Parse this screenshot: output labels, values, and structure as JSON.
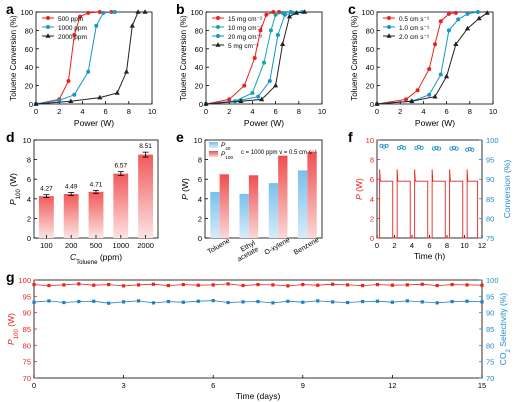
{
  "panels": {
    "a": {
      "letter": "a"
    },
    "b": {
      "letter": "b"
    },
    "c": {
      "letter": "c"
    },
    "d": {
      "letter": "d"
    },
    "e": {
      "letter": "e"
    },
    "f": {
      "letter": "f"
    },
    "g": {
      "letter": "g"
    }
  },
  "colors": {
    "red": "#e8231f",
    "blue": "#1597c9",
    "teal": "#17a6a6",
    "black": "#222222",
    "pink_light": "#fbd3d4",
    "blue_light": "#a9d6f2",
    "axis_right_blue": "#1f8ccd"
  },
  "chart_data": [
    {
      "id": "a",
      "type": "line",
      "xlabel": "Power (W)",
      "ylabel": "Toluene Conversion (%)",
      "xlim": [
        0,
        10
      ],
      "ylim": [
        0,
        100
      ],
      "xticks": [
        "0",
        "2",
        "4",
        "6",
        "8",
        "10"
      ],
      "yticks": [
        "0",
        "20",
        "40",
        "60",
        "80",
        "100"
      ],
      "legend_position": "top-left",
      "series": [
        {
          "name": "500 ppm",
          "color": "#e8231f",
          "marker": "circle",
          "points": [
            [
              0,
              0
            ],
            [
              2.0,
              5
            ],
            [
              2.8,
              25
            ],
            [
              3.3,
              75
            ],
            [
              3.8,
              95
            ],
            [
              4.5,
              99
            ],
            [
              5.5,
              100
            ],
            [
              6.5,
              100
            ]
          ]
        },
        {
          "name": "1000 ppm",
          "color": "#1597c9",
          "marker": "circle",
          "points": [
            [
              0,
              0
            ],
            [
              2.0,
              4
            ],
            [
              3.3,
              10
            ],
            [
              4.5,
              35
            ],
            [
              5.2,
              85
            ],
            [
              5.8,
              99
            ],
            [
              6.8,
              100
            ]
          ]
        },
        {
          "name": "2000 ppm",
          "color": "#222222",
          "marker": "triangle",
          "points": [
            [
              0,
              0
            ],
            [
              3.0,
              3
            ],
            [
              5.5,
              7
            ],
            [
              7.0,
              12
            ],
            [
              7.8,
              35
            ],
            [
              8.3,
              85
            ],
            [
              8.8,
              100
            ],
            [
              9.4,
              100
            ]
          ]
        }
      ]
    },
    {
      "id": "b",
      "type": "line",
      "xlabel": "Power (W)",
      "ylabel": "Toluene Conversion (%)",
      "xlim": [
        0,
        10
      ],
      "ylim": [
        0,
        100
      ],
      "xticks": [
        "0",
        "2",
        "4",
        "6",
        "8",
        "10"
      ],
      "yticks": [
        "0",
        "20",
        "40",
        "60",
        "80",
        "100"
      ],
      "legend_position": "top-left",
      "series": [
        {
          "name": "15 mg cm⁻²",
          "color": "#e8231f",
          "marker": "circle",
          "points": [
            [
              0,
              0
            ],
            [
              2.0,
              5
            ],
            [
              3.3,
              20
            ],
            [
              4.2,
              50
            ],
            [
              4.7,
              80
            ],
            [
              5.2,
              97
            ],
            [
              5.8,
              100
            ],
            [
              6.3,
              100
            ]
          ]
        },
        {
          "name": "10 mg cm⁻²",
          "color": "#17a6a6",
          "marker": "circle",
          "points": [
            [
              0,
              0
            ],
            [
              2.5,
              3
            ],
            [
              4.0,
              12
            ],
            [
              5.0,
              45
            ],
            [
              5.6,
              80
            ],
            [
              6.0,
              97
            ],
            [
              6.6,
              99
            ],
            [
              7.3,
              100
            ]
          ]
        },
        {
          "name": "20 mg cm⁻²",
          "color": "#1597c9",
          "marker": "circle",
          "points": [
            [
              0,
              0
            ],
            [
              3.0,
              4
            ],
            [
              4.5,
              8
            ],
            [
              5.5,
              25
            ],
            [
              6.2,
              75
            ],
            [
              6.8,
              97
            ],
            [
              7.5,
              99
            ],
            [
              8.3,
              100
            ]
          ]
        },
        {
          "name": "5  mg cm⁻²",
          "color": "#222222",
          "marker": "triangle",
          "points": [
            [
              0,
              0
            ],
            [
              3.0,
              3
            ],
            [
              4.8,
              5
            ],
            [
              6.0,
              20
            ],
            [
              6.6,
              65
            ],
            [
              7.2,
              95
            ],
            [
              7.8,
              99
            ],
            [
              8.5,
              100
            ]
          ]
        }
      ]
    },
    {
      "id": "c",
      "type": "line",
      "xlabel": "Power (W)",
      "ylabel": "Toluene Conversion (%)",
      "xlim": [
        0,
        10
      ],
      "ylim": [
        0,
        100
      ],
      "xticks": [
        "0",
        "2",
        "4",
        "6",
        "8",
        "10"
      ],
      "yticks": [
        "0",
        "20",
        "40",
        "60",
        "80",
        "100"
      ],
      "legend_position": "top-left",
      "series": [
        {
          "name": "0.5 cm s⁻¹",
          "color": "#e8231f",
          "marker": "circle",
          "points": [
            [
              0,
              0
            ],
            [
              2.5,
              5
            ],
            [
              3.5,
              15
            ],
            [
              4.5,
              38
            ],
            [
              5.0,
              65
            ],
            [
              5.5,
              90
            ],
            [
              6.2,
              98
            ],
            [
              6.8,
              99
            ]
          ]
        },
        {
          "name": "1.0 cm s⁻¹",
          "color": "#1597c9",
          "marker": "circle",
          "points": [
            [
              0,
              0
            ],
            [
              3.0,
              3
            ],
            [
              4.5,
              10
            ],
            [
              5.5,
              32
            ],
            [
              6.2,
              80
            ],
            [
              7.0,
              92
            ],
            [
              7.8,
              98
            ],
            [
              8.7,
              100
            ]
          ]
        },
        {
          "name": "2.0 cm s⁻¹",
          "color": "#222222",
          "marker": "triangle",
          "points": [
            [
              0,
              0
            ],
            [
              3.0,
              3
            ],
            [
              5.0,
              8
            ],
            [
              6.0,
              30
            ],
            [
              6.8,
              65
            ],
            [
              7.8,
              82
            ],
            [
              8.8,
              93
            ],
            [
              9.5,
              99
            ]
          ]
        }
      ]
    },
    {
      "id": "d",
      "type": "bar",
      "xlabel_main": "C",
      "xlabel_sub": "Toluene",
      "xlabel_unit": " (ppm)",
      "ylabel_main": "P",
      "ylabel_sub": "100",
      "ylabel_unit": " (W)",
      "ylim": [
        0,
        10
      ],
      "yticks": [
        "0",
        "2",
        "4",
        "6",
        "8",
        "10"
      ],
      "categories": [
        "100",
        "200",
        "500",
        "1000",
        "2000"
      ],
      "values": [
        4.27,
        4.49,
        4.71,
        6.57,
        8.51
      ],
      "value_labels": [
        "4.27",
        "4.49",
        "4.71",
        "6.57",
        "8.51"
      ],
      "errors": [
        0.15,
        0.15,
        0.15,
        0.2,
        0.25
      ]
    },
    {
      "id": "e",
      "type": "bar",
      "ylabel_main": "P",
      "ylabel_unit": " (W)",
      "ylim": [
        0,
        10
      ],
      "yticks": [
        "0",
        "2",
        "4",
        "6",
        "8",
        "10"
      ],
      "categories": [
        "Toluene",
        "Ethyl acetate",
        "O-xylene",
        "Benzene"
      ],
      "category_lines": [
        [
          "Toluene"
        ],
        [
          "Ethyl",
          "acetate"
        ],
        [
          "O-xylene"
        ],
        [
          "Benzene"
        ]
      ],
      "annotation": "c = 1000 ppm  v = 0.5 cm s⁻¹",
      "legend_position": "top-left",
      "series": [
        {
          "name_main": "P",
          "name_sub": "20",
          "color": "#a9d6f2",
          "values": [
            4.7,
            4.5,
            5.6,
            6.9
          ]
        },
        {
          "name_main": "P",
          "name_sub": "100",
          "color": "#f27d7d",
          "values": [
            6.5,
            6.4,
            8.4,
            8.8
          ]
        }
      ]
    },
    {
      "id": "f",
      "type": "line",
      "xlabel": "Time (h)",
      "ylabel_left_main": "P",
      "ylabel_left_unit": " (W)",
      "ylabel_right": "Conversion (%)",
      "xlim": [
        0,
        12
      ],
      "ylim_left": [
        0,
        10
      ],
      "ylim_right": [
        75,
        100
      ],
      "xticks": [
        "0",
        "2",
        "4",
        "6",
        "8",
        "10",
        "12"
      ],
      "yticks_left": [
        "0",
        "2",
        "4",
        "6",
        "8",
        "10"
      ],
      "yticks_right": [
        "75",
        "80",
        "85",
        "90",
        "95",
        "100"
      ],
      "power_cycles": {
        "on_value": 5.8,
        "peak_value": 7.0,
        "off_value": 0,
        "on_intervals": [
          [
            0.3,
            1.8
          ],
          [
            2.3,
            3.8
          ],
          [
            4.3,
            5.8
          ],
          [
            6.3,
            7.8
          ],
          [
            8.3,
            9.8
          ],
          [
            10.3,
            11.5
          ]
        ]
      },
      "conversion_points": [
        [
          0.5,
          98.5
        ],
        [
          0.8,
          98.3
        ],
        [
          1.1,
          98.5
        ],
        [
          2.5,
          98.0
        ],
        [
          2.8,
          98.2
        ],
        [
          3.1,
          98.0
        ],
        [
          4.5,
          98.0
        ],
        [
          4.8,
          98.2
        ],
        [
          5.1,
          98.0
        ],
        [
          6.5,
          97.8
        ],
        [
          6.8,
          98.0
        ],
        [
          7.1,
          97.8
        ],
        [
          8.5,
          97.8
        ],
        [
          8.8,
          98.0
        ],
        [
          9.1,
          97.8
        ],
        [
          10.3,
          97.5
        ],
        [
          10.6,
          97.7
        ],
        [
          10.9,
          97.5
        ]
      ]
    },
    {
      "id": "g",
      "type": "line",
      "xlabel": "Time (days)",
      "ylabel_left_main": "P",
      "ylabel_left_sub": "100",
      "ylabel_left_unit": " (W)",
      "ylabel_right_main": "CO",
      "ylabel_right_sub": "2",
      "ylabel_right_unit": " Selectivity (%)",
      "xlim": [
        0,
        15
      ],
      "ylim_left": [
        70,
        100
      ],
      "ylim_right": [
        70,
        100
      ],
      "xticks": [
        "0",
        "3",
        "6",
        "9",
        "12",
        "15"
      ],
      "yticks_left": [
        "70",
        "75",
        "80",
        "85",
        "90",
        "95",
        "100"
      ],
      "yticks_right": [
        "70",
        "75",
        "80",
        "85",
        "90",
        "95",
        "100"
      ],
      "series": [
        {
          "name": "P100",
          "axis": "left",
          "color": "#e8231f",
          "values": [
            98.6,
            98.3,
            98.5,
            98.8,
            98.4,
            98.6,
            98.2,
            98.5,
            98.7,
            98.3,
            98.6,
            98.4,
            98.5,
            98.8,
            98.3,
            98.6,
            98.5,
            98.2,
            98.6,
            98.4,
            98.7,
            98.5,
            98.3,
            98.6,
            98.4,
            98.5,
            98.7,
            98.3,
            98.6,
            98.5,
            98.4
          ]
        },
        {
          "name": "CO2 Selectivity",
          "axis": "right",
          "color": "#1f7fbf",
          "values": [
            93.2,
            93.6,
            93.1,
            93.4,
            93.5,
            92.9,
            93.3,
            93.6,
            93.0,
            93.4,
            93.2,
            93.5,
            93.7,
            93.1,
            93.3,
            93.4,
            93.0,
            93.5,
            93.2,
            93.6,
            93.3,
            93.1,
            93.4,
            93.5,
            93.2,
            93.6,
            93.3,
            93.0,
            93.4,
            93.5,
            93.3
          ]
        }
      ]
    }
  ]
}
